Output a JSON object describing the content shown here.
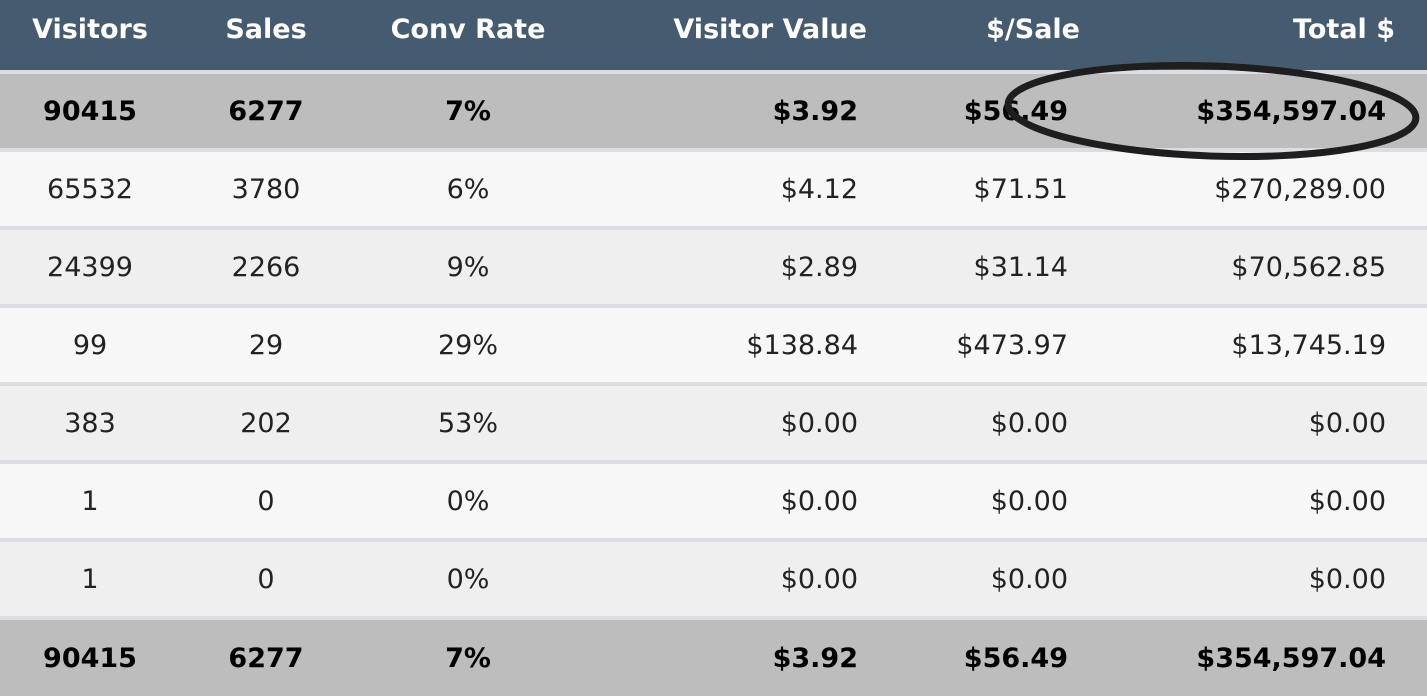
{
  "table": {
    "header": [
      "Visitors",
      "Sales",
      "Conv Rate",
      "Visitor Value",
      "$/Sale",
      "Total $"
    ],
    "rows": [
      [
        "90415",
        "6277",
        "7%",
        "$3.92",
        "$56.49",
        "$354,597.04"
      ],
      [
        "65532",
        "3780",
        "6%",
        "$4.12",
        "$71.51",
        "$270,289.00"
      ],
      [
        "24399",
        "2266",
        "9%",
        "$2.89",
        "$31.14",
        "$70,562.85"
      ],
      [
        "99",
        "29",
        "29%",
        "$138.84",
        "$473.97",
        "$13,745.19"
      ],
      [
        "383",
        "202",
        "53%",
        "$0.00",
        "$0.00",
        "$0.00"
      ],
      [
        "1",
        "0",
        "0%",
        "$0.00",
        "$0.00",
        "$0.00"
      ],
      [
        "1",
        "0",
        "0%",
        "$0.00",
        "$0.00",
        "$0.00"
      ],
      [
        "90415",
        "6277",
        "7%",
        "$3.92",
        "$56.49",
        "$354,597.04"
      ]
    ]
  }
}
